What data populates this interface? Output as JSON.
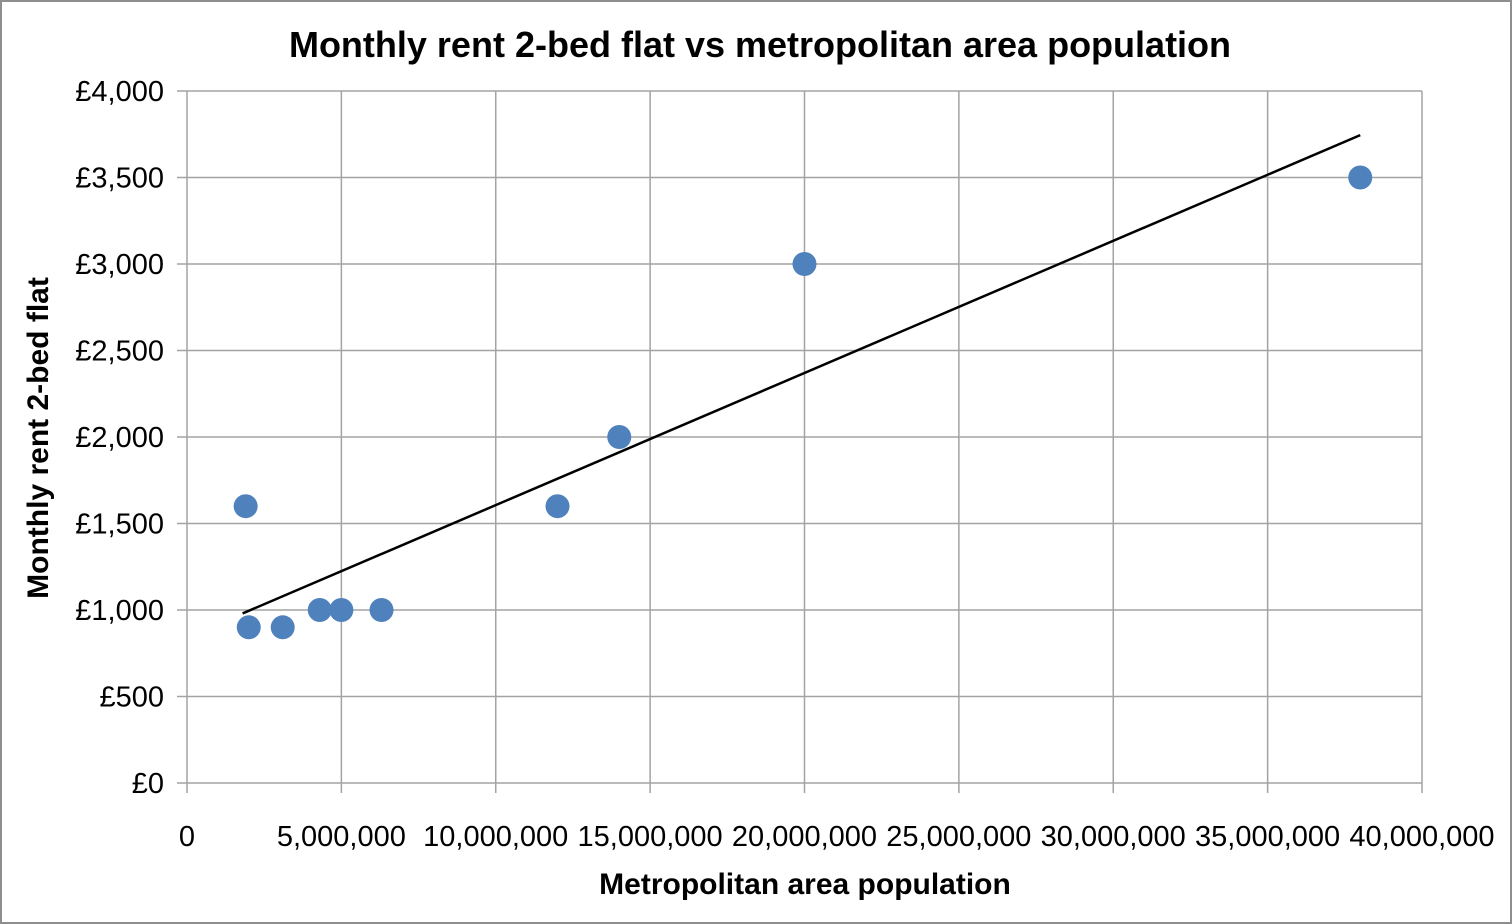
{
  "chart_data": {
    "type": "scatter",
    "title": "Monthly rent 2-bed flat vs metropolitan area population",
    "xlabel": "Metropolitan area population",
    "ylabel": "Monthly rent 2-bed flat",
    "xlim": [
      0,
      40000000
    ],
    "ylim": [
      0,
      4000
    ],
    "grid": true,
    "legend": false,
    "x_ticks": [
      0,
      5000000,
      10000000,
      15000000,
      20000000,
      25000000,
      30000000,
      35000000,
      40000000
    ],
    "x_tick_labels": [
      "0",
      "5,000,000",
      "10,000,000",
      "15,000,000",
      "20,000,000",
      "25,000,000",
      "30,000,000",
      "35,000,000",
      "40,000,000"
    ],
    "y_ticks": [
      0,
      500,
      1000,
      1500,
      2000,
      2500,
      3000,
      3500,
      4000
    ],
    "y_tick_labels": [
      "£0",
      "£500",
      "£1,000",
      "£1,500",
      "£2,000",
      "£2,500",
      "£3,000",
      "£3,500",
      "£4,000"
    ],
    "series": [
      {
        "name": "Monthly rent 2-bed flat",
        "points": [
          [
            1900000,
            1600
          ],
          [
            2000000,
            900
          ],
          [
            3100000,
            900
          ],
          [
            4300000,
            1000
          ],
          [
            5000000,
            1000
          ],
          [
            6300000,
            1000
          ],
          [
            12000000,
            1600
          ],
          [
            14000000,
            2000
          ],
          [
            20000000,
            3000
          ],
          [
            38000000,
            3500
          ]
        ]
      }
    ],
    "trendline": {
      "x1": 1800000,
      "y1": 980,
      "x2": 38000000,
      "y2": 3745
    },
    "colors": {
      "point": "#4F81BD",
      "trendline": "#000000",
      "gridline": "#A3A3A3",
      "text": "#000000",
      "frame_border": "#8E8E8E"
    }
  }
}
